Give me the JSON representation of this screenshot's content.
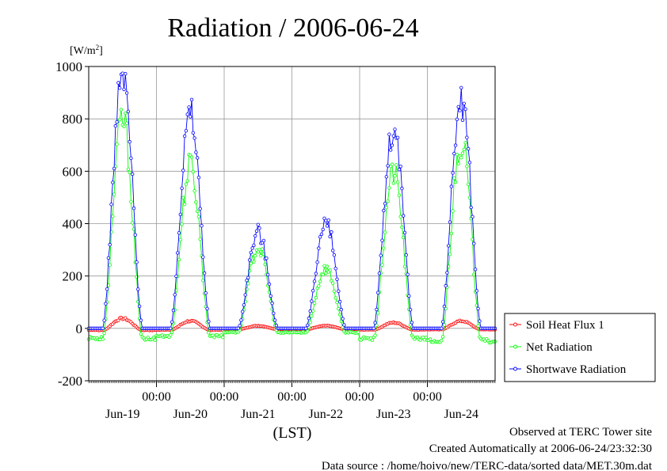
{
  "chart_data": {
    "type": "line",
    "title": "Radiation / 2006-06-24",
    "ylabel_unit": "[W/m",
    "ylabel_sup": "2",
    "ylabel_close": "]",
    "xlabel": "(LST)",
    "ylim": [
      -200,
      1000
    ],
    "yticks": [
      1000,
      800,
      600,
      400,
      200,
      0,
      -200
    ],
    "xlim": [
      0,
      6
    ],
    "time_ticks": [
      {
        "x": 1,
        "label": "00:00"
      },
      {
        "x": 2,
        "label": "00:00"
      },
      {
        "x": 3,
        "label": "00:00"
      },
      {
        "x": 4,
        "label": "00:00"
      },
      {
        "x": 5,
        "label": "00:00"
      }
    ],
    "day_labels": [
      {
        "x": 0.5,
        "label": "Jun-19"
      },
      {
        "x": 1.5,
        "label": "Jun-20"
      },
      {
        "x": 2.5,
        "label": "Jun-21"
      },
      {
        "x": 3.5,
        "label": "Jun-22"
      },
      {
        "x": 4.5,
        "label": "Jun-23"
      },
      {
        "x": 5.5,
        "label": "Jun-24"
      }
    ],
    "grid": true,
    "legend_position": "right",
    "x_unit": "days since Jun-19 00:00 LST",
    "series": [
      {
        "name": "Soil Heat Flux 1",
        "color": "#ff0000",
        "days": [
          {
            "start": 2,
            "end": 10,
            "peak": 38,
            "width": 1.6,
            "night": -8
          },
          {
            "start": 2,
            "end": 11,
            "peak": 28,
            "width": 1.6,
            "night": -7
          },
          {
            "start": 4,
            "end": 9,
            "peak": 10,
            "width": 1.6,
            "night": -4
          },
          {
            "start": 4,
            "end": 8,
            "peak": 10,
            "width": 1.6,
            "night": -4
          },
          {
            "start": 4,
            "end": 10,
            "peak": 22,
            "width": 1.6,
            "night": -6
          },
          {
            "start": 4,
            "end": 9,
            "peak": 28,
            "width": 1.6,
            "night": -5
          }
        ]
      },
      {
        "name": "Net Radiation",
        "color": "#00ff00",
        "days": [
          {
            "start": 1,
            "end": 10,
            "peak": 800,
            "width": 1.6,
            "night": -45
          },
          {
            "start": 1,
            "end": 11,
            "peak": 620,
            "width": 1.6,
            "night": -35
          },
          {
            "start": 4,
            "end": 9,
            "peak": 310,
            "width": 1.6,
            "night": -18
          },
          {
            "start": 4,
            "end": 8,
            "peak": 230,
            "width": 1.6,
            "night": -18
          },
          {
            "start": 4,
            "end": 10,
            "peak": 600,
            "width": 1.6,
            "night": -45
          },
          {
            "start": 4,
            "end": 9,
            "peak": 720,
            "width": 1.6,
            "night": -55
          }
        ]
      },
      {
        "name": "Shortwave Radiation",
        "color": "#0000ff",
        "days": [
          {
            "start": 1,
            "end": 10,
            "peak": 960,
            "width": 1.6,
            "night": 0
          },
          {
            "start": 1,
            "end": 11,
            "peak": 820,
            "width": 1.6,
            "night": 0
          },
          {
            "start": 4,
            "end": 9,
            "peak": 370,
            "width": 1.6,
            "night": 0
          },
          {
            "start": 4,
            "end": 8,
            "peak": 400,
            "width": 1.6,
            "night": 0
          },
          {
            "start": 4,
            "end": 10,
            "peak": 750,
            "width": 1.6,
            "night": 0
          },
          {
            "start": 4,
            "end": 9,
            "peak": 880,
            "width": 1.6,
            "night": 0
          }
        ]
      }
    ]
  },
  "footer": {
    "line1": "Observed at TERC Tower site",
    "line2": "Created Automatically at 2006-06-24/23:32:30",
    "line3": "Data source : /home/hoivo/new/TERC-data/sorted data/MET.30m.dat"
  }
}
